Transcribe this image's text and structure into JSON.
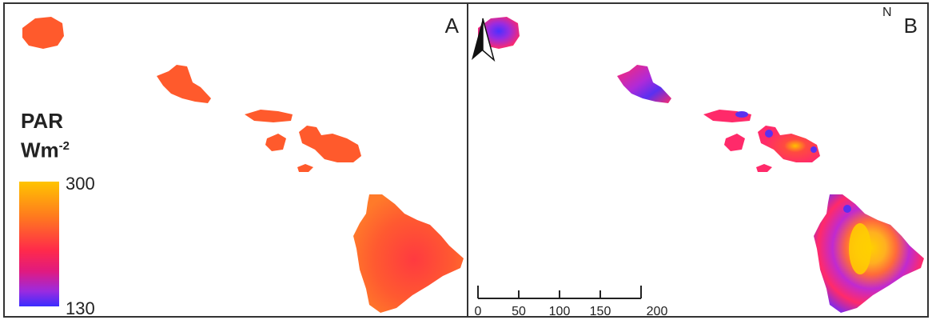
{
  "panels": [
    {
      "label": "A"
    },
    {
      "label": "B"
    }
  ],
  "legend": {
    "title_line1": "PAR",
    "title_line2_base": "Wm",
    "title_line2_exp": "-2",
    "max_value": "300",
    "min_value": "130",
    "gradient_colors": [
      "#ffc400",
      "#ff7a1e",
      "#ff2a4a",
      "#e01a80",
      "#9a2be0",
      "#3a2cff"
    ]
  },
  "north_arrow": {
    "letter": "N"
  },
  "scale_bar": {
    "ticks": [
      "0",
      "50",
      "100",
      "150",
      "200 km"
    ]
  },
  "colors": {
    "panel_a_fill": "#ff5a2c",
    "panel_b_base": "#ff2a6a",
    "panel_b_low": "#4a30ff",
    "panel_b_mid": "#b02ad8",
    "panel_b_high": "#ffd000"
  }
}
